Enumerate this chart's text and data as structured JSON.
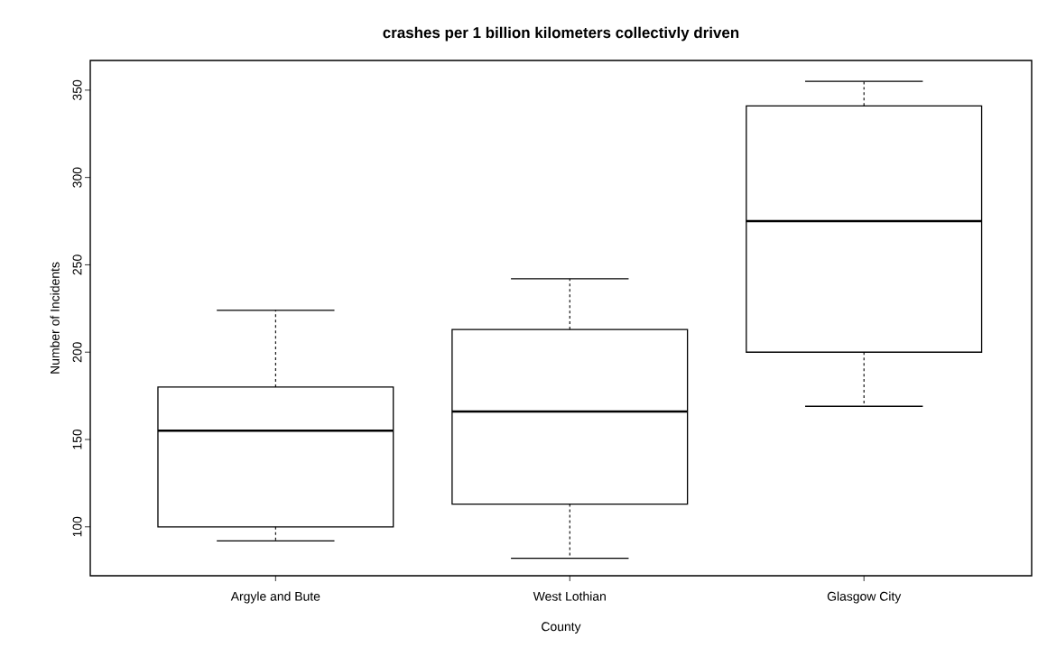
{
  "chart_data": {
    "type": "box",
    "title": "crashes per 1 billion kilometers collectivly driven",
    "xlabel": "County",
    "ylabel": "Number of Incidents",
    "categories": [
      "Argyle and Bute",
      "West Lothian",
      "Glasgow City"
    ],
    "boxes": [
      {
        "low": 92,
        "q1": 100,
        "median": 155,
        "q3": 180,
        "high": 224
      },
      {
        "low": 82,
        "q1": 113,
        "median": 166,
        "q3": 213,
        "high": 242
      },
      {
        "low": 169,
        "q1": 200,
        "median": 275,
        "q3": 341,
        "high": 355
      }
    ],
    "color": "#000000",
    "ylim": [
      72,
      367
    ],
    "yticks": [
      100,
      150,
      200,
      250,
      300,
      350
    ],
    "grid": false
  }
}
